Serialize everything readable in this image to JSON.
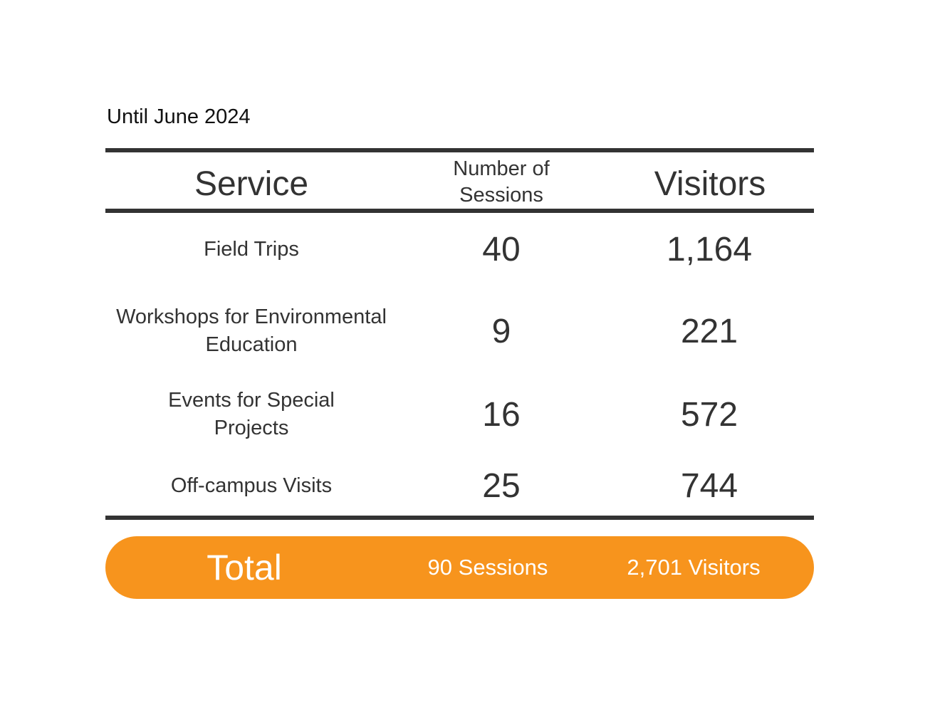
{
  "caption": "Until June 2024",
  "colors": {
    "rule": "#333333",
    "text": "#333333",
    "total_bar": "#f7941d",
    "total_text": "#ffffff"
  },
  "chart_data": {
    "type": "table",
    "columns": [
      "Service",
      "Number of Sessions",
      "Visitors"
    ],
    "rows": [
      {
        "service": "Field Trips",
        "sessions": "40",
        "visitors": "1,164"
      },
      {
        "service": "Workshops for Environmental Education",
        "sessions": "9",
        "visitors": "221"
      },
      {
        "service": "Events for Special Projects",
        "sessions": "16",
        "visitors": "572"
      },
      {
        "service": "Off-campus Visits",
        "sessions": "25",
        "visitors": "744"
      }
    ],
    "total": {
      "label": "Total",
      "sessions": "90 Sessions",
      "visitors": "2,701 Visitors"
    }
  }
}
